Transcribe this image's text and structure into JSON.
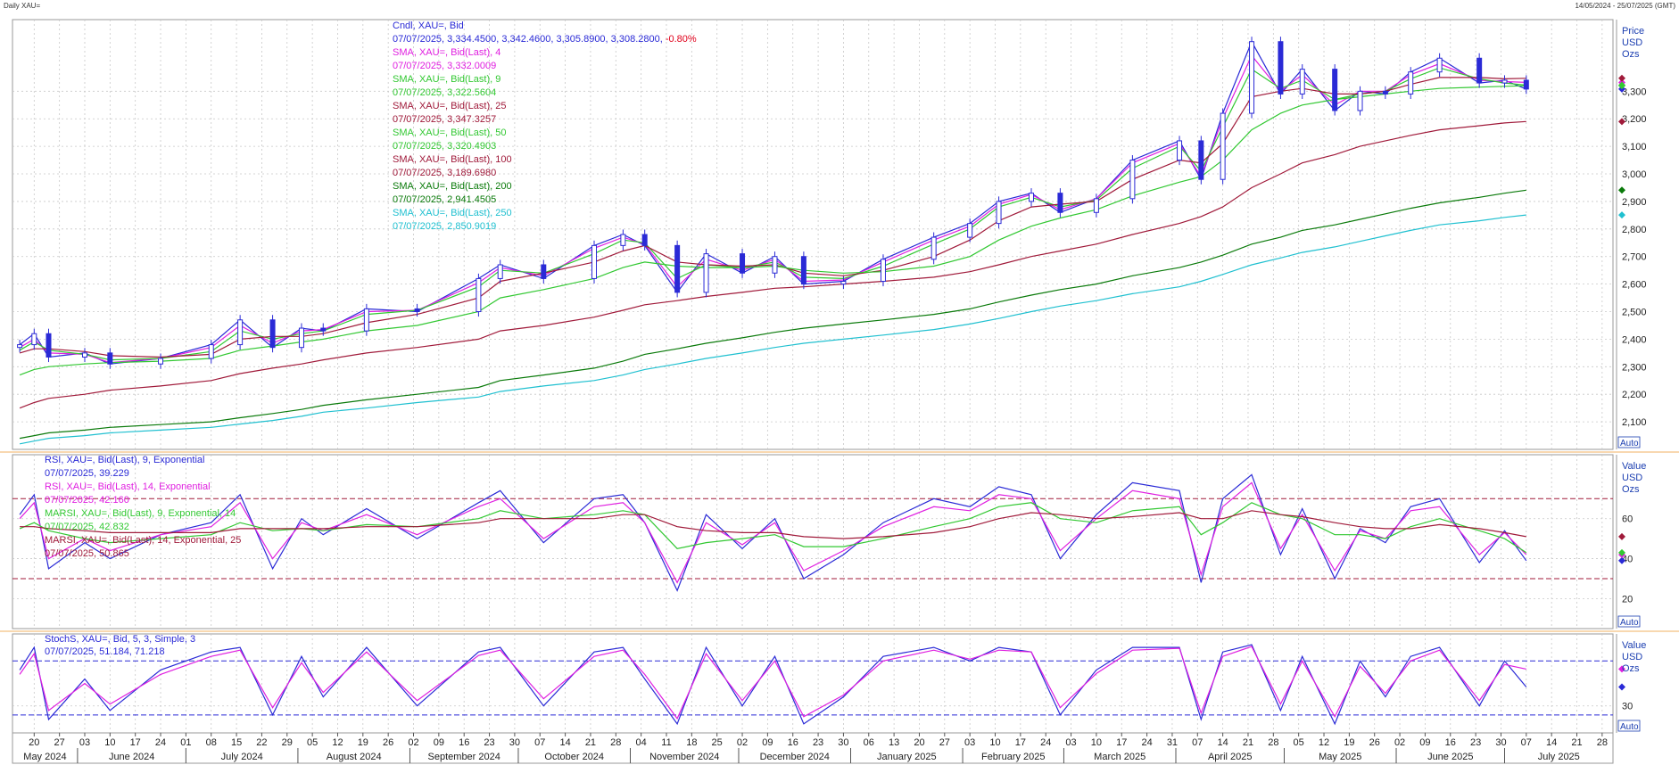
{
  "window": {
    "title": "Daily XAU=",
    "date_range": "14/05/2024 - 25/07/2025 (GMT)"
  },
  "panels": {
    "price": {
      "axis_title": [
        "Price",
        "USD",
        "Ozs"
      ],
      "auto_label": "Auto",
      "legend": [
        {
          "label": "Cndl, XAU=, Bid",
          "value": "07/07/2025, 3,334.4500, 3,342.4600, 3,305.8900, 3,308.2800, -0.80%",
          "color": "#2a2ad6",
          "value_color": "#2a2ad6",
          "pct_color": "#e0001b"
        },
        {
          "label": "SMA, XAU=, Bid(Last),  4",
          "value": "07/07/2025, 3,332.0009",
          "color": "#e020e0"
        },
        {
          "label": "SMA, XAU=, Bid(Last),  9",
          "value": "07/07/2025, 3,322.5604",
          "color": "#32c832"
        },
        {
          "label": "SMA, XAU=, Bid(Last),  25",
          "value": "07/07/2025, 3,347.3257",
          "color": "#a01a3a"
        },
        {
          "label": "SMA, XAU=, Bid(Last),  50",
          "value": "07/07/2025, 3,320.4903",
          "color": "#32c832"
        },
        {
          "label": "SMA, XAU=, Bid(Last),  100",
          "value": "07/07/2025, 3,189.6980",
          "color": "#a01a3a"
        },
        {
          "label": "SMA, XAU=, Bid(Last),  200",
          "value": "07/07/2025, 2,941.4505",
          "color": "#0a7a0a"
        },
        {
          "label": "SMA, XAU=, Bid(Last),  250",
          "value": "07/07/2025, 2,850.9019",
          "color": "#20c0d0"
        }
      ]
    },
    "rsi": {
      "axis_title": [
        "Value",
        "USD",
        "Ozs"
      ],
      "auto_label": "Auto",
      "legend": [
        {
          "label": "RSI, XAU=, Bid(Last),  9, Exponential",
          "value": "07/07/2025, 39.229",
          "color": "#2a2ad6"
        },
        {
          "label": "RSI, XAU=, Bid(Last),  14, Exponential",
          "value": "07/07/2025, 42.160",
          "color": "#e020e0"
        },
        {
          "label": "MARSI, XAU=, Bid(Last),  9, Exponential, 14",
          "value": "07/07/2025, 42.832",
          "color": "#32c832"
        },
        {
          "label": "MARSI, XAU=, Bid(Last),  14, Exponential, 25",
          "value": "07/07/2025, 50.865",
          "color": "#a01a3a"
        }
      ]
    },
    "stoch": {
      "axis_title": [
        "Value",
        "USD",
        "Ozs"
      ],
      "auto_label": "Auto",
      "legend": [
        {
          "label": "StochS, XAU=, Bid,  5, 3, Simple, 3",
          "value": "07/07/2025, 51.184, 71.218",
          "color": "#2a2ad6"
        }
      ]
    }
  },
  "chart_data": [
    {
      "type": "line",
      "panel": "price",
      "title": "Daily XAU=",
      "ylabel": "Price USD Ozs",
      "y_ticks": [
        2100,
        2200,
        2300,
        2400,
        2500,
        2600,
        2700,
        2800,
        2900,
        3000,
        3100,
        3200,
        3300
      ],
      "y_tick_labels": [
        "2,100",
        "2,200",
        "2,300",
        "2,400",
        "2,500",
        "2,600",
        "2,700",
        "2,800",
        "2,900",
        "3,000",
        "3,100",
        "3,200",
        "3,300"
      ],
      "ylim": [
        2000,
        3560
      ],
      "grid": true,
      "x_date_labels": [
        "20",
        "27",
        "03",
        "10",
        "17",
        "24",
        "01",
        "08",
        "15",
        "22",
        "29",
        "05",
        "12",
        "19",
        "26",
        "02",
        "09",
        "16",
        "23",
        "30",
        "07",
        "14",
        "21",
        "28",
        "04",
        "11",
        "18",
        "25",
        "02",
        "09",
        "16",
        "23",
        "30",
        "06",
        "13",
        "20",
        "27",
        "03",
        "10",
        "17",
        "24",
        "03",
        "10",
        "17",
        "24",
        "31",
        "07",
        "14",
        "21",
        "28",
        "05",
        "12",
        "19",
        "26",
        "02",
        "09",
        "16",
        "23",
        "30",
        "07",
        "14",
        "21",
        "28"
      ],
      "x_month_labels": [
        "May 2024",
        "June 2024",
        "July 2024",
        "August 2024",
        "September 2024",
        "October 2024",
        "November 2024",
        "December 2024",
        "January 2025",
        "February 2025",
        "March 2025",
        "April 2025",
        "May 2025",
        "June 2025",
        "July 2025"
      ],
      "series": [
        {
          "name": "Cndl, XAU=, Bid",
          "kind": "close_approx",
          "x": [
            "2024-05-16",
            "2024-05-20",
            "2024-05-24",
            "2024-06-03",
            "2024-06-10",
            "2024-06-24",
            "2024-07-08",
            "2024-07-16",
            "2024-07-25",
            "2024-08-02",
            "2024-08-08",
            "2024-08-20",
            "2024-09-03",
            "2024-09-20",
            "2024-09-26",
            "2024-10-08",
            "2024-10-22",
            "2024-10-30",
            "2024-11-05",
            "2024-11-14",
            "2024-11-22",
            "2024-12-02",
            "2024-12-11",
            "2024-12-19",
            "2024-12-30",
            "2025-01-10",
            "2025-01-24",
            "2025-02-03",
            "2025-02-11",
            "2025-02-20",
            "2025-02-28",
            "2025-03-10",
            "2025-03-20",
            "2025-04-02",
            "2025-04-08",
            "2025-04-14",
            "2025-04-22",
            "2025-04-30",
            "2025-05-06",
            "2025-05-15",
            "2025-05-22",
            "2025-05-29",
            "2025-06-05",
            "2025-06-13",
            "2025-06-24",
            "2025-07-01",
            "2025-07-07"
          ],
          "values": [
            2380,
            2420,
            2335,
            2350,
            2310,
            2330,
            2380,
            2470,
            2370,
            2440,
            2430,
            2510,
            2500,
            2620,
            2670,
            2620,
            2740,
            2780,
            2740,
            2570,
            2710,
            2640,
            2700,
            2600,
            2610,
            2690,
            2770,
            2820,
            2900,
            2930,
            2860,
            2910,
            3050,
            3120,
            2980,
            3220,
            3480,
            3290,
            3380,
            3230,
            3300,
            3290,
            3370,
            3420,
            3330,
            3340,
            3308
          ]
        },
        {
          "name": "SMA, XAU=, Bid(Last),  4",
          "x_ref": "Cndl",
          "values": [
            2370,
            2400,
            2350,
            2345,
            2315,
            2330,
            2370,
            2450,
            2385,
            2430,
            2435,
            2500,
            2505,
            2605,
            2660,
            2630,
            2730,
            2770,
            2745,
            2590,
            2690,
            2650,
            2690,
            2610,
            2615,
            2680,
            2760,
            2810,
            2890,
            2925,
            2870,
            2910,
            3040,
            3110,
            2990,
            3200,
            3430,
            3300,
            3360,
            3250,
            3300,
            3300,
            3360,
            3400,
            3340,
            3335,
            3332
          ]
        },
        {
          "name": "SMA, XAU=, Bid(Last),  9",
          "x_ref": "Cndl",
          "values": [
            2360,
            2390,
            2360,
            2345,
            2325,
            2330,
            2355,
            2430,
            2400,
            2420,
            2430,
            2490,
            2505,
            2590,
            2650,
            2640,
            2710,
            2760,
            2750,
            2620,
            2670,
            2660,
            2680,
            2625,
            2620,
            2665,
            2745,
            2800,
            2880,
            2915,
            2880,
            2905,
            3020,
            3100,
            3010,
            3170,
            3380,
            3310,
            3340,
            3270,
            3290,
            3300,
            3345,
            3385,
            3345,
            3330,
            3322
          ]
        },
        {
          "name": "SMA, XAU=, Bid(Last),  25",
          "x_ref": "Cndl",
          "values": [
            2350,
            2365,
            2365,
            2355,
            2340,
            2335,
            2345,
            2400,
            2410,
            2410,
            2420,
            2460,
            2490,
            2550,
            2610,
            2640,
            2680,
            2720,
            2740,
            2680,
            2670,
            2665,
            2670,
            2640,
            2630,
            2650,
            2700,
            2760,
            2830,
            2880,
            2890,
            2900,
            2980,
            3050,
            3040,
            3110,
            3280,
            3300,
            3310,
            3290,
            3290,
            3300,
            3325,
            3350,
            3350,
            3345,
            3347
          ]
        },
        {
          "name": "SMA, XAU=, Bid(Last),  50",
          "x_ref": "Cndl",
          "values": [
            2270,
            2290,
            2300,
            2310,
            2315,
            2320,
            2330,
            2360,
            2375,
            2390,
            2400,
            2430,
            2450,
            2500,
            2550,
            2580,
            2620,
            2660,
            2680,
            2665,
            2660,
            2660,
            2665,
            2650,
            2640,
            2645,
            2665,
            2700,
            2760,
            2810,
            2840,
            2870,
            2920,
            2970,
            2990,
            3050,
            3160,
            3220,
            3250,
            3270,
            3280,
            3290,
            3300,
            3310,
            3315,
            3318,
            3320
          ]
        },
        {
          "name": "SMA, XAU=, Bid(Last),  100",
          "x_ref": "Cndl",
          "values": [
            2150,
            2170,
            2185,
            2200,
            2215,
            2230,
            2250,
            2275,
            2295,
            2310,
            2325,
            2350,
            2370,
            2400,
            2430,
            2450,
            2480,
            2505,
            2525,
            2540,
            2555,
            2570,
            2585,
            2590,
            2600,
            2610,
            2625,
            2645,
            2670,
            2700,
            2720,
            2745,
            2780,
            2820,
            2845,
            2880,
            2950,
            3000,
            3040,
            3070,
            3100,
            3120,
            3140,
            3160,
            3175,
            3185,
            3190
          ]
        },
        {
          "name": "SMA, XAU=, Bid(Last),  200",
          "x_ref": "Cndl",
          "values": [
            2040,
            2050,
            2060,
            2070,
            2080,
            2090,
            2100,
            2115,
            2130,
            2145,
            2160,
            2180,
            2200,
            2225,
            2250,
            2270,
            2295,
            2320,
            2345,
            2365,
            2385,
            2405,
            2425,
            2440,
            2455,
            2470,
            2490,
            2510,
            2535,
            2560,
            2580,
            2600,
            2630,
            2660,
            2680,
            2705,
            2745,
            2770,
            2795,
            2815,
            2835,
            2855,
            2875,
            2895,
            2915,
            2930,
            2941
          ]
        },
        {
          "name": "SMA, XAU=, Bid(Last),  250",
          "x_ref": "Cndl",
          "values": [
            2020,
            2030,
            2040,
            2050,
            2060,
            2070,
            2080,
            2092,
            2105,
            2120,
            2135,
            2150,
            2170,
            2190,
            2210,
            2230,
            2250,
            2270,
            2290,
            2310,
            2330,
            2350,
            2370,
            2385,
            2400,
            2415,
            2435,
            2455,
            2475,
            2500,
            2520,
            2540,
            2565,
            2590,
            2610,
            2635,
            2670,
            2695,
            2715,
            2735,
            2755,
            2775,
            2795,
            2815,
            2830,
            2842,
            2851
          ]
        }
      ]
    },
    {
      "type": "line",
      "panel": "rsi",
      "ylabel": "Value USD Ozs",
      "y_ticks": [
        20,
        40,
        60
      ],
      "y_tick_labels": [
        "20",
        "40",
        "60"
      ],
      "ylim": [
        5,
        92
      ],
      "reference_lines": [
        30,
        70
      ],
      "grid": true,
      "series": [
        {
          "name": "RSI, XAU=, Bid(Last),  9, Exponential",
          "x_ref": "Cndl",
          "values": [
            62,
            72,
            35,
            48,
            40,
            52,
            58,
            72,
            35,
            60,
            52,
            65,
            50,
            68,
            74,
            48,
            70,
            72,
            58,
            24,
            62,
            45,
            60,
            30,
            42,
            58,
            70,
            66,
            76,
            72,
            40,
            62,
            78,
            74,
            28,
            70,
            82,
            42,
            65,
            30,
            55,
            48,
            66,
            70,
            38,
            54,
            39
          ]
        },
        {
          "name": "RSI, XAU=, Bid(Last),  14, Exponential",
          "x_ref": "Cndl",
          "values": [
            60,
            68,
            40,
            50,
            44,
            52,
            56,
            68,
            40,
            58,
            54,
            62,
            52,
            66,
            70,
            50,
            66,
            68,
            58,
            28,
            58,
            47,
            58,
            34,
            44,
            56,
            66,
            64,
            72,
            70,
            44,
            60,
            74,
            70,
            32,
            66,
            78,
            45,
            62,
            34,
            54,
            50,
            64,
            66,
            42,
            53,
            42
          ]
        },
        {
          "name": "MARSI, XAU=, Bid(Last),  9, Exponential, 14",
          "x_ref": "Cndl",
          "values": [
            55,
            58,
            54,
            50,
            48,
            50,
            52,
            58,
            54,
            55,
            54,
            57,
            56,
            60,
            64,
            60,
            62,
            64,
            62,
            45,
            48,
            50,
            52,
            46,
            46,
            50,
            56,
            60,
            66,
            68,
            60,
            58,
            64,
            66,
            52,
            58,
            68,
            62,
            60,
            52,
            52,
            50,
            56,
            60,
            54,
            50,
            43
          ]
        },
        {
          "name": "MARSI, XAU=, Bid(Last),  14, Exponential, 25",
          "x_ref": "Cndl",
          "values": [
            56,
            56,
            55,
            54,
            53,
            53,
            53,
            55,
            55,
            55,
            55,
            56,
            56,
            58,
            60,
            60,
            60,
            62,
            62,
            56,
            54,
            53,
            53,
            51,
            50,
            51,
            53,
            56,
            60,
            63,
            62,
            60,
            61,
            63,
            60,
            60,
            64,
            62,
            61,
            58,
            56,
            55,
            55,
            57,
            55,
            53,
            51
          ]
        }
      ]
    },
    {
      "type": "line",
      "panel": "stoch",
      "ylabel": "Value USD Ozs",
      "y_ticks": [
        30
      ],
      "y_tick_labels": [
        "30"
      ],
      "ylim": [
        0,
        110
      ],
      "reference_lines": [
        20,
        80
      ],
      "grid": true,
      "series": [
        {
          "name": "StochS %K",
          "x_ref": "Cndl",
          "values": [
            70,
            95,
            15,
            60,
            25,
            70,
            90,
            95,
            20,
            85,
            40,
            95,
            30,
            90,
            95,
            30,
            90,
            95,
            60,
            10,
            95,
            30,
            85,
            10,
            40,
            85,
            95,
            80,
            95,
            90,
            20,
            70,
            95,
            95,
            15,
            90,
            98,
            25,
            85,
            10,
            80,
            40,
            85,
            95,
            30,
            80,
            51
          ]
        },
        {
          "name": "StochS %D",
          "x_ref": "Cndl",
          "values": [
            65,
            88,
            25,
            55,
            32,
            65,
            85,
            92,
            28,
            78,
            45,
            90,
            36,
            86,
            92,
            38,
            85,
            92,
            65,
            16,
            88,
            36,
            80,
            18,
            42,
            80,
            92,
            82,
            92,
            90,
            28,
            66,
            92,
            94,
            22,
            85,
            96,
            32,
            80,
            18,
            74,
            44,
            80,
            92,
            36,
            76,
            71
          ]
        }
      ]
    }
  ]
}
